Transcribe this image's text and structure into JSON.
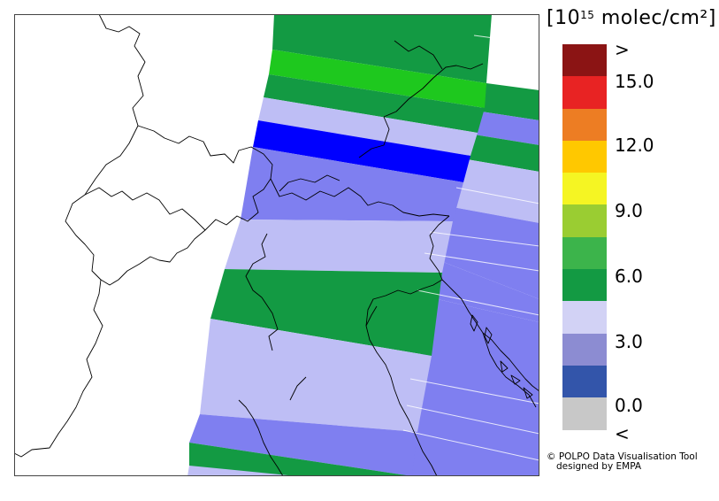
{
  "legend": {
    "unit_label_prefix": "[10",
    "unit_label_exp": "15",
    "unit_label_suffix": " molec/cm²]",
    "ticks": [
      ">",
      "15.0",
      "12.0",
      "9.0",
      "6.0",
      "3.0",
      "0.0",
      "<"
    ],
    "colors": [
      "#8b1414",
      "#e82323",
      "#ed7d23",
      "#ffc800",
      "#f5f523",
      "#9acd32",
      "#3cb44b",
      "#139a43",
      "#d2d2f5",
      "#8c8cd2",
      "#3355aa",
      "#c8c8c8"
    ]
  },
  "credits": {
    "line1": "© POLPO Data Visualisation Tool",
    "line2": "designed by EMPA"
  },
  "colors": {
    "green": "#139a43",
    "bright_green": "#1ec81e",
    "lavender": "#bebef5",
    "periwinkle": "#7f7ff0",
    "blue": "#0000ff"
  }
}
